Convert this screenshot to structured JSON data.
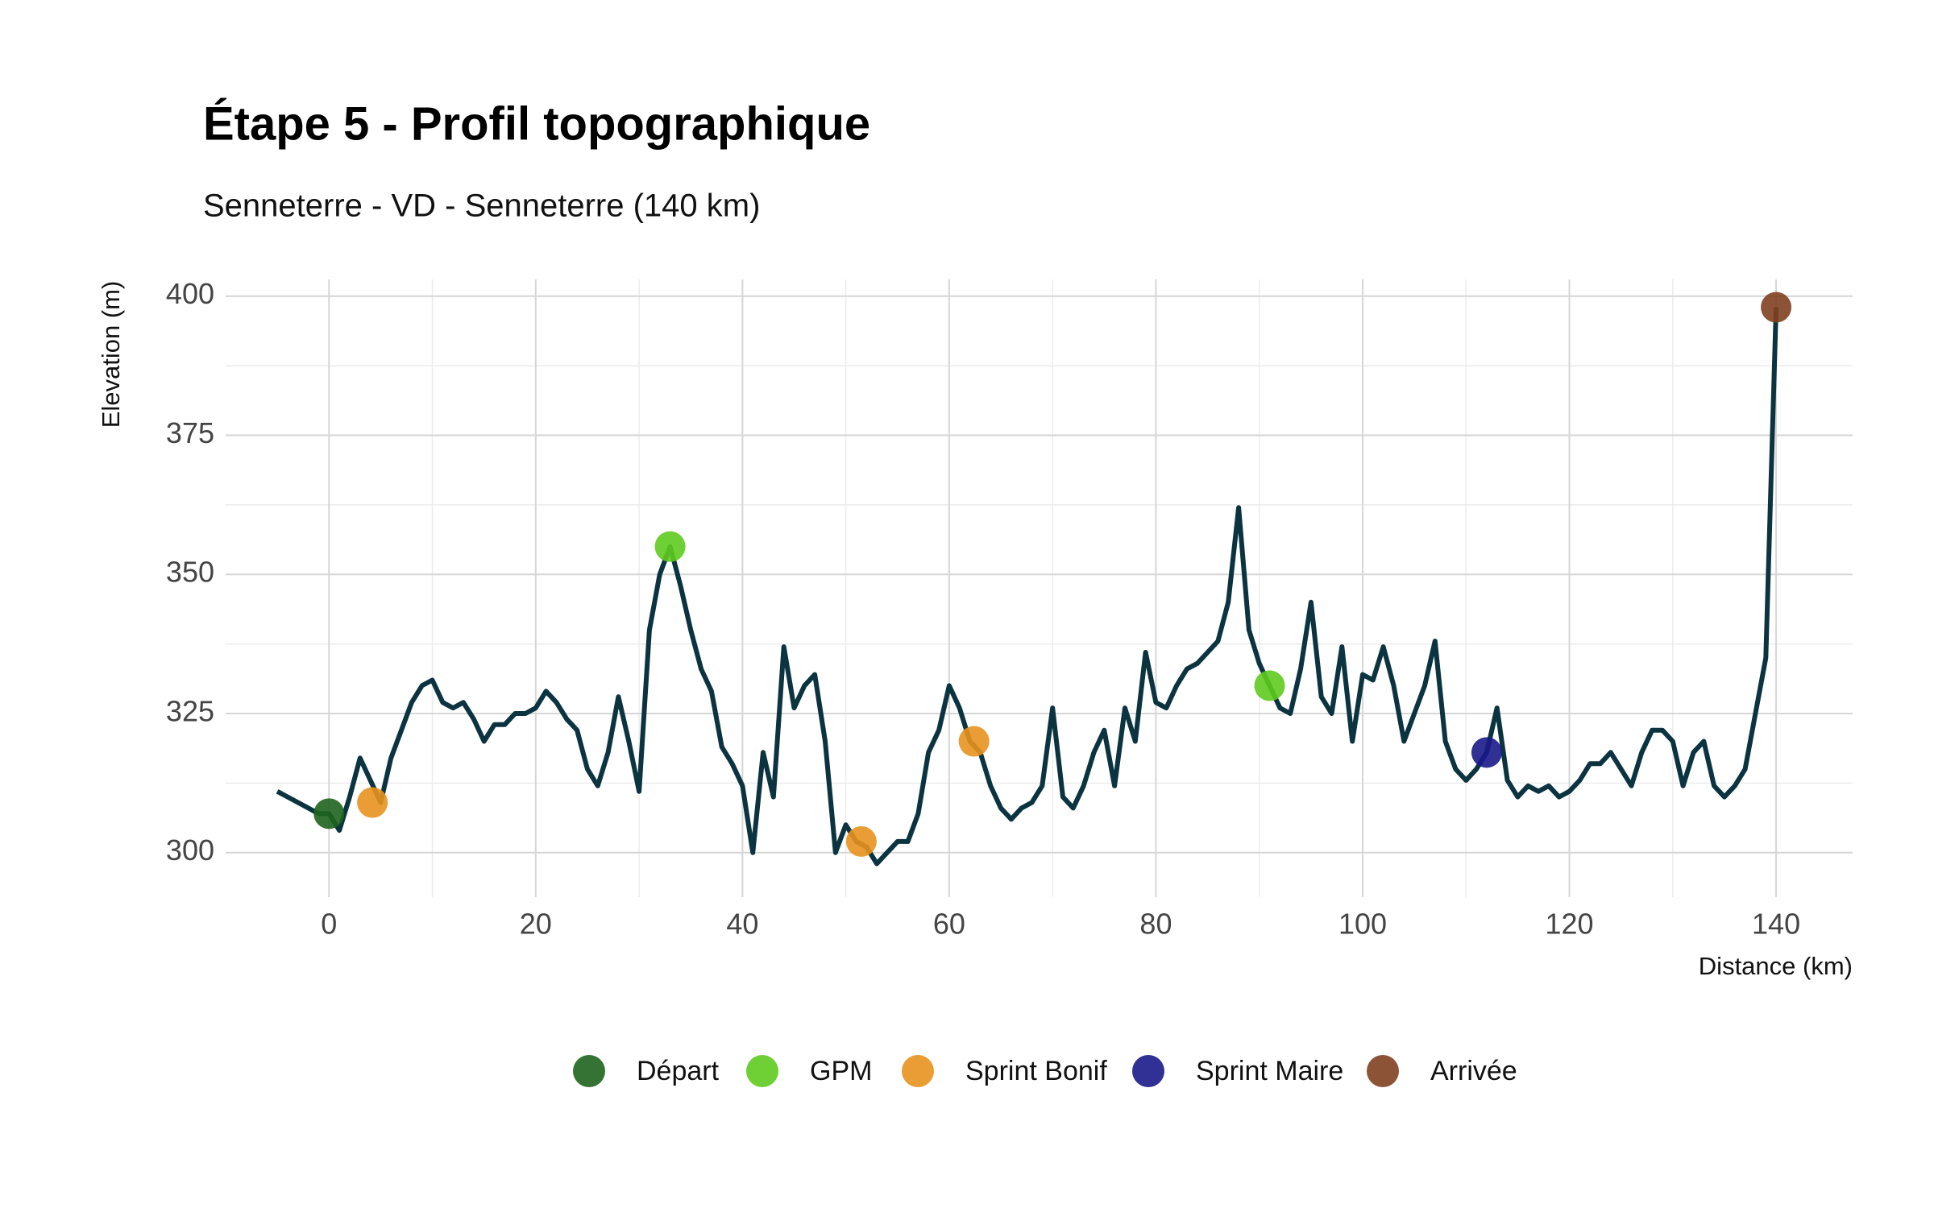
{
  "chart_data": {
    "type": "line",
    "title": "Étape 5 - Profil topographique",
    "subtitle": "Senneterre - VD - Senneterre (140 km)",
    "x_label": "Distance (km)",
    "y_label": "Elevation (m)",
    "xlim": [
      -10,
      147.4
    ],
    "ylim": [
      292,
      403
    ],
    "xticks": [
      0,
      20,
      40,
      60,
      80,
      100,
      120,
      140
    ],
    "yticks": [
      300,
      325,
      350,
      375,
      400
    ],
    "grid": true,
    "profile": {
      "color": "#0b3440",
      "x": [
        -5,
        -4,
        -3,
        -2,
        -1,
        0,
        1,
        2,
        3,
        4,
        5,
        6,
        7,
        8,
        9,
        10,
        11,
        12,
        13,
        14,
        15,
        16,
        17,
        18,
        19,
        20,
        21,
        22,
        23,
        24,
        25,
        26,
        27,
        28,
        29,
        30,
        31,
        32,
        33,
        34,
        35,
        36,
        37,
        38,
        39,
        40,
        41,
        42,
        43,
        44,
        45,
        46,
        47,
        48,
        49,
        50,
        51,
        52,
        53,
        54,
        55,
        56,
        57,
        58,
        59,
        60,
        61,
        62,
        63,
        64,
        65,
        66,
        67,
        68,
        69,
        70,
        71,
        72,
        73,
        74,
        75,
        76,
        77,
        78,
        79,
        80,
        81,
        82,
        83,
        84,
        85,
        86,
        87,
        88,
        89,
        90,
        91,
        92,
        93,
        94,
        95,
        96,
        97,
        98,
        99,
        100,
        101,
        102,
        103,
        104,
        105,
        106,
        107,
        108,
        109,
        110,
        111,
        112,
        113,
        114,
        115,
        116,
        117,
        118,
        119,
        120,
        121,
        122,
        123,
        124,
        125,
        126,
        127,
        128,
        129,
        130,
        131,
        132,
        133,
        134,
        135,
        136,
        137,
        138,
        139,
        140
      ],
      "values": [
        311,
        310,
        309,
        308,
        307,
        307,
        304,
        310,
        317,
        313,
        309,
        317,
        322,
        327,
        330,
        331,
        327,
        326,
        327,
        324,
        320,
        323,
        323,
        325,
        325,
        326,
        329,
        327,
        324,
        322,
        315,
        312,
        318,
        328,
        320,
        311,
        340,
        350,
        355,
        348,
        340,
        333,
        329,
        319,
        316,
        312,
        300,
        318,
        310,
        337,
        326,
        330,
        332,
        320,
        300,
        305,
        302,
        301,
        298,
        300,
        302,
        302,
        307,
        318,
        322,
        330,
        326,
        320,
        318,
        312,
        308,
        306,
        308,
        309,
        312,
        326,
        310,
        308,
        312,
        318,
        322,
        312,
        326,
        320,
        336,
        327,
        326,
        330,
        333,
        334,
        336,
        338,
        345,
        362,
        340,
        334,
        330,
        326,
        325,
        333,
        345,
        328,
        325,
        337,
        320,
        332,
        331,
        337,
        330,
        320,
        325,
        330,
        338,
        320,
        315,
        313,
        315,
        318,
        326,
        313,
        310,
        312,
        311,
        312,
        310,
        311,
        313,
        316,
        316,
        318,
        315,
        312,
        318,
        322,
        322,
        320,
        312,
        318,
        320,
        312,
        310,
        312,
        315,
        325,
        335,
        398
      ]
    },
    "points": [
      {
        "name": "Départ",
        "color": "#1e641e",
        "x": [
          0
        ],
        "values": [
          307
        ]
      },
      {
        "name": "GPM",
        "color": "#5ecb1e",
        "x": [
          33,
          91
        ],
        "values": [
          355,
          330
        ]
      },
      {
        "name": "Sprint Bonif",
        "color": "#e8921e",
        "x": [
          4.2,
          51.5,
          62.4
        ],
        "values": [
          309,
          302,
          320
        ]
      },
      {
        "name": "Sprint Maire",
        "color": "#1a1a8a",
        "x": [
          112
        ],
        "values": [
          318
        ]
      },
      {
        "name": "Arrivée",
        "color": "#7f4020",
        "x": [
          140
        ],
        "values": [
          398
        ]
      }
    ]
  }
}
